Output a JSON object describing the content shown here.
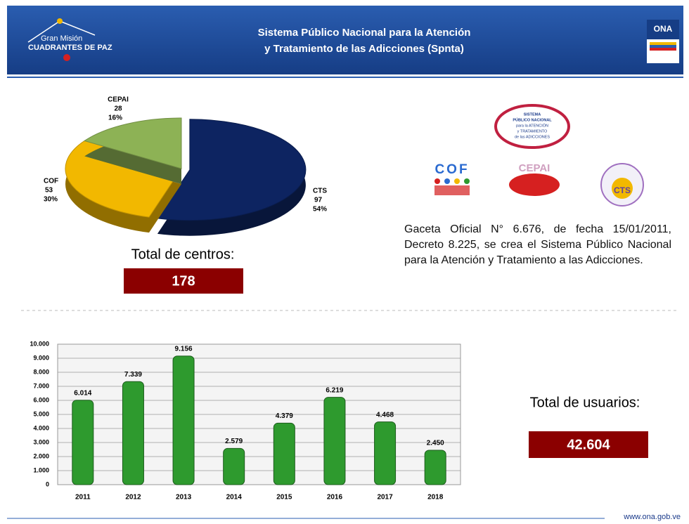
{
  "header": {
    "logo_small": "Gran Misión",
    "logo_big": "CUADRANTES DE PAZ",
    "title_lines": [
      "Sistema Público Nacional para la Atención",
      "y Tratamiento de las Adicciones (Spnta)"
    ],
    "right_logo": "ONA"
  },
  "logos": {
    "spnta": [
      "SISTEMA",
      "PÚBLICO NACIONAL",
      "para la ATENCIÓN",
      "y TRATAMIENTO",
      "de las ADICCIONES"
    ],
    "cof": "COF",
    "cepai": "CEPAI",
    "cts": "CTS"
  },
  "centros": {
    "label": "Total de centros:",
    "total": "178"
  },
  "gaceta": "Gaceta Oficial N° 6.676, de fecha 15/01/2011, Decreto 8.225, se crea el Sistema Público Nacional para la Atención y Tratamiento a las Adicciones.",
  "usuarios": {
    "label": "Total de usuarios:",
    "total": "42.604"
  },
  "footer": "www.ona.gob.ve",
  "chart_data": [
    {
      "type": "pie",
      "categories": [
        "CTS",
        "COF",
        "CEPAI"
      ],
      "values": [
        97,
        53,
        28
      ],
      "percentages": [
        54,
        30,
        16
      ],
      "percentage_labels": [
        "54%",
        "30%",
        "16%"
      ],
      "colors": [
        "#0d2461",
        "#f2b800",
        "#8db255"
      ]
    },
    {
      "type": "bar",
      "categories": [
        "2011",
        "2012",
        "2013",
        "2014",
        "2015",
        "2016",
        "2017",
        "2018"
      ],
      "values": [
        6014,
        7339,
        9156,
        2579,
        4379,
        6219,
        4468,
        2450
      ],
      "value_labels": [
        "6.014",
        "7.339",
        "9.156",
        "2.579",
        "4.379",
        "6.219",
        "4.468",
        "2.450"
      ],
      "color": "#2e9a2e",
      "ylim": [
        0,
        10000
      ],
      "grid": true,
      "yticks": [
        0,
        {
          "value": 1000,
          "label": "1.000"
        },
        {
          "value": 2000,
          "label": "2.000"
        },
        {
          "value": 3000,
          "label": "3.000"
        },
        {
          "value": 4000,
          "label": "4.000"
        },
        {
          "value": 5000,
          "label": "5.000"
        },
        {
          "value": 6000,
          "label": "6.000"
        },
        {
          "value": 7000,
          "label": "7.000"
        },
        {
          "value": 8000,
          "label": "8.000"
        },
        {
          "value": 9000,
          "label": "9.000"
        },
        {
          "value": 10000,
          "label": "10.000"
        }
      ]
    }
  ]
}
